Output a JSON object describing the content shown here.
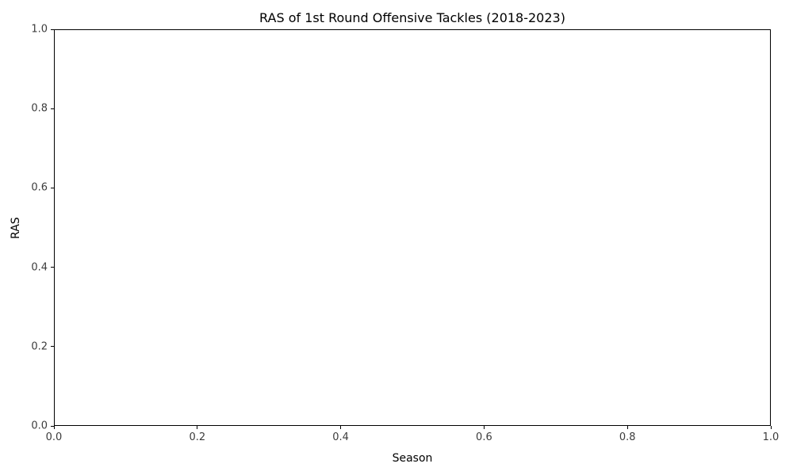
{
  "chart_data": {
    "type": "line",
    "title": "RAS of 1st Round Offensive Tackles (2018-2023)",
    "xlabel": "Season",
    "ylabel": "RAS",
    "xlim": [
      0.0,
      1.0
    ],
    "ylim": [
      0.0,
      1.0
    ],
    "x_ticks": [
      "0.0",
      "0.2",
      "0.4",
      "0.6",
      "0.8",
      "1.0"
    ],
    "y_ticks": [
      "0.0",
      "0.2",
      "0.4",
      "0.6",
      "0.8",
      "1.0"
    ],
    "series": [],
    "grid": false,
    "legend": null,
    "background_color": "#ffffff",
    "spine_color": "#000000"
  }
}
